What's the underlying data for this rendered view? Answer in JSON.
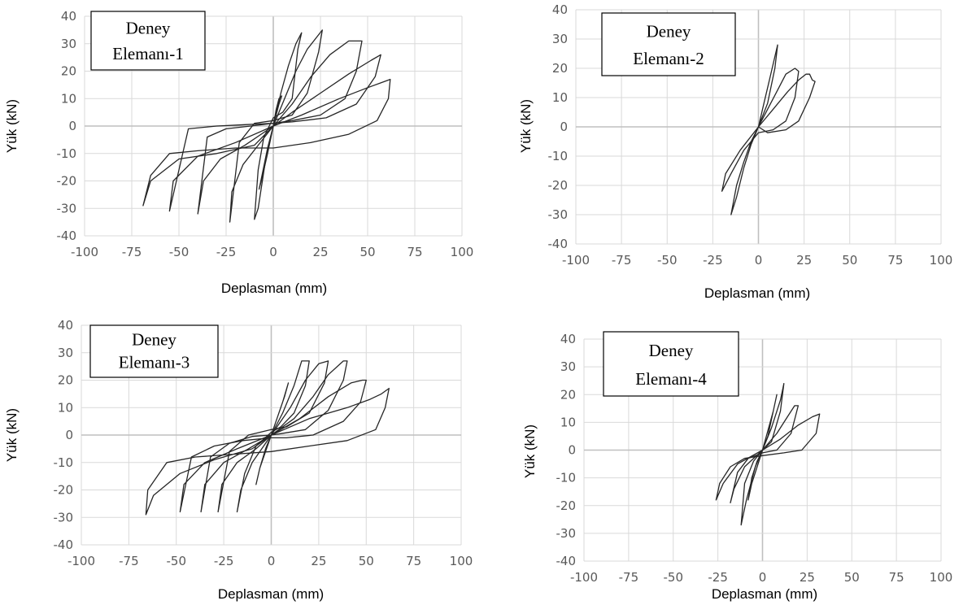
{
  "chart_data": [
    {
      "type": "line",
      "box_label": [
        "Deney",
        "Elemanı-1"
      ],
      "xlabel": "Deplasman (mm)",
      "ylabel": "Yük (kN)",
      "xlim": [
        -100,
        100
      ],
      "ylim": [
        -40,
        40
      ],
      "xticks": [
        "-100",
        "-75",
        "-50",
        "-25",
        "0",
        "25",
        "50",
        "75",
        "100"
      ],
      "yticks": [
        "40",
        "30",
        "20",
        "10",
        "0",
        "-10",
        "-20",
        "-30",
        "-40"
      ],
      "grid": true,
      "series": [
        {
          "x": [
            0,
            1.5,
            3,
            4.5,
            3,
            0,
            -3,
            -6,
            -7.5,
            -6,
            -3,
            0
          ],
          "y": [
            0,
            6,
            10,
            11,
            8,
            0,
            -10,
            -19,
            -23,
            -18,
            -8,
            0
          ]
        },
        {
          "x": [
            0,
            4,
            8,
            12,
            15,
            13,
            10,
            5,
            0,
            -5,
            -8,
            -10,
            -8,
            -4,
            0
          ],
          "y": [
            0,
            12,
            22,
            30,
            34,
            28,
            10,
            5,
            3,
            -4,
            -16,
            -34,
            -30,
            -12,
            0
          ]
        },
        {
          "x": [
            0,
            6,
            12,
            18,
            26,
            24,
            18,
            10,
            0,
            -10,
            -18,
            -23,
            -22,
            -16,
            -8,
            0
          ],
          "y": [
            0,
            10,
            20,
            28,
            35,
            27,
            12,
            4,
            2,
            1,
            -6,
            -35,
            -24,
            -14,
            -7,
            0
          ]
        },
        {
          "x": [
            0,
            10,
            20,
            30,
            40,
            47,
            44,
            38,
            25,
            10,
            0,
            -12,
            -25,
            -35,
            -40,
            -37,
            -28,
            -15,
            0
          ],
          "y": [
            0,
            8,
            18,
            26,
            31,
            31,
            20,
            10,
            4,
            2,
            1,
            0,
            -1,
            -4,
            -32,
            -20,
            -12,
            -7,
            0
          ]
        },
        {
          "x": [
            0,
            10,
            25,
            40,
            52,
            57,
            54,
            44,
            28,
            10,
            0,
            -15,
            -30,
            -45,
            -55,
            -53,
            -40,
            -20,
            0
          ],
          "y": [
            0,
            5,
            12,
            19,
            24,
            26,
            18,
            8,
            3,
            1.5,
            1,
            0.5,
            0,
            -1,
            -31,
            -20,
            -11,
            -6,
            0
          ]
        },
        {
          "x": [
            0,
            15,
            35,
            50,
            58,
            62,
            61,
            55,
            40,
            20,
            0,
            -20,
            -40,
            -55,
            -65,
            -69,
            -65,
            -50,
            -30,
            -10,
            0
          ],
          "y": [
            0,
            4,
            10,
            14,
            16,
            17,
            10,
            2,
            -3,
            -6,
            -8,
            -8,
            -9,
            -10,
            -18,
            -29,
            -20,
            -12,
            -10,
            -7,
            0
          ]
        }
      ]
    },
    {
      "type": "line",
      "box_label": [
        "Deney",
        "Elemanı-2"
      ],
      "xlabel": "Deplasman (mm)",
      "ylabel": "Yük (kN)",
      "xlim": [
        -100,
        100
      ],
      "ylim": [
        -40,
        40
      ],
      "xticks": [
        "-100",
        "-75",
        "-50",
        "-25",
        "0",
        "25",
        "50",
        "75",
        "100"
      ],
      "yticks": [
        "40",
        "30",
        "20",
        "10",
        "0",
        "-10",
        "-20",
        "-30",
        "-40"
      ],
      "grid": true,
      "series": [
        {
          "x": [
            0,
            3,
            6,
            9,
            10.5,
            9,
            5,
            0,
            -4,
            -8,
            -12,
            -15,
            -12,
            -8,
            -4,
            0
          ],
          "y": [
            0,
            8,
            16,
            24,
            28,
            20,
            8,
            0,
            -6,
            -14,
            -24,
            -30,
            -20,
            -12,
            -5,
            0
          ]
        },
        {
          "x": [
            0,
            5,
            10,
            15,
            20,
            22,
            20,
            15,
            8,
            0,
            -8,
            -15,
            -20,
            -18,
            -10,
            0
          ],
          "y": [
            0,
            6,
            12,
            18,
            20,
            19,
            10,
            2,
            -1,
            -2,
            -8,
            -16,
            -22,
            -16,
            -8,
            0
          ]
        },
        {
          "x": [
            0,
            8,
            16,
            22,
            26,
            28,
            29.5,
            31,
            28,
            22,
            15,
            5,
            0
          ],
          "y": [
            0,
            6,
            12,
            16,
            18,
            18,
            16,
            15.5,
            10,
            2,
            -1,
            -2,
            0
          ]
        }
      ]
    },
    {
      "type": "line",
      "box_label": [
        "Deney",
        "Elemanı-3"
      ],
      "xlabel": "Deplasman (mm)",
      "ylabel": "Yük (kN)",
      "xlim": [
        -100,
        100
      ],
      "ylim": [
        -40,
        40
      ],
      "xticks": [
        "-100",
        "-75",
        "-50",
        "-25",
        "0",
        "25",
        "50",
        "75",
        "100"
      ],
      "yticks": [
        "40",
        "30",
        "20",
        "10",
        "0",
        "-10",
        "-20",
        "-30",
        "-40"
      ],
      "grid": true,
      "series": [
        {
          "x": [
            0,
            3,
            6,
            9,
            7,
            3,
            0,
            -3,
            -6,
            -8,
            -6,
            -3,
            0
          ],
          "y": [
            0,
            6,
            12,
            19,
            14,
            6,
            0,
            -6,
            -12,
            -18,
            -12,
            -5,
            0
          ]
        },
        {
          "x": [
            0,
            6,
            12,
            16,
            20,
            18,
            12,
            5,
            0,
            -8,
            -14,
            -18,
            -16,
            -10,
            -4,
            0
          ],
          "y": [
            0,
            8,
            18,
            27,
            27,
            18,
            8,
            3,
            1,
            -4,
            -14,
            -28,
            -20,
            -10,
            -4,
            0
          ]
        },
        {
          "x": [
            0,
            10,
            18,
            25,
            30,
            28,
            20,
            8,
            0,
            -12,
            -22,
            -28,
            -26,
            -18,
            -8,
            0
          ],
          "y": [
            0,
            10,
            20,
            26,
            27,
            19,
            8,
            3,
            2,
            0,
            -6,
            -28,
            -18,
            -10,
            -5,
            0
          ]
        },
        {
          "x": [
            0,
            12,
            22,
            30,
            38,
            40,
            38,
            30,
            18,
            5,
            0,
            -10,
            -22,
            -32,
            -37,
            -35,
            -25,
            -12,
            0
          ],
          "y": [
            0,
            6,
            14,
            22,
            27,
            27,
            20,
            9,
            2,
            0.5,
            0,
            -0.5,
            -3,
            -8,
            -28,
            -18,
            -10,
            -5,
            0
          ]
        },
        {
          "x": [
            0,
            15,
            30,
            42,
            48,
            50,
            47,
            38,
            22,
            8,
            0,
            -15,
            -30,
            -42,
            -48,
            -46,
            -35,
            -18,
            0
          ],
          "y": [
            0,
            6,
            14,
            19,
            20,
            20,
            12,
            5,
            0,
            -1,
            -1,
            -2,
            -4,
            -8,
            -28,
            -18,
            -10,
            -5,
            0
          ]
        },
        {
          "x": [
            0,
            20,
            40,
            52,
            58,
            62,
            60,
            55,
            40,
            20,
            0,
            -20,
            -40,
            -55,
            -65,
            -66,
            -62,
            -48,
            -30,
            -10,
            0
          ],
          "y": [
            0,
            6,
            10,
            13,
            15,
            17,
            10,
            2,
            -2,
            -4,
            -6,
            -7,
            -8,
            -10,
            -20,
            -29,
            -22,
            -14,
            -9,
            -5,
            0
          ]
        }
      ]
    },
    {
      "type": "line",
      "box_label": [
        "Deney",
        "Elemanı-4"
      ],
      "xlabel": "Deplasman (mm)",
      "ylabel": "Yük (kN)",
      "xlim": [
        -100,
        100
      ],
      "ylim": [
        -40,
        40
      ],
      "xticks": [
        "-100",
        "-75",
        "-50",
        "-25",
        "0",
        "25",
        "50",
        "75",
        "100"
      ],
      "yticks": [
        "40",
        "30",
        "20",
        "10",
        "0",
        "-10",
        "-20",
        "-30",
        "-40"
      ],
      "grid": true,
      "series": [
        {
          "x": [
            0,
            3,
            6,
            8,
            6,
            3,
            0,
            -3,
            -6,
            -8,
            -6,
            -3,
            0
          ],
          "y": [
            0,
            7,
            14,
            20,
            14,
            5,
            0,
            -6,
            -12,
            -18,
            -10,
            -4,
            0
          ]
        },
        {
          "x": [
            0,
            5,
            10,
            12,
            10,
            5,
            0,
            -5,
            -10,
            -12,
            -9,
            -4,
            0
          ],
          "y": [
            0,
            8,
            18,
            24,
            14,
            3,
            0,
            -4,
            -12,
            -27,
            -18,
            -6,
            0
          ]
        },
        {
          "x": [
            0,
            8,
            14,
            18,
            20,
            16,
            8,
            0,
            -8,
            -14,
            -18,
            -16,
            -10,
            0
          ],
          "y": [
            0,
            6,
            12,
            16,
            16,
            6,
            0,
            -1,
            -3,
            -8,
            -19,
            -14,
            -6,
            0
          ]
        },
        {
          "x": [
            0,
            10,
            20,
            28,
            32,
            30,
            22,
            12,
            0,
            -10,
            -18,
            -24,
            -26,
            -22,
            -14,
            0
          ],
          "y": [
            0,
            4,
            9,
            12,
            13,
            6,
            0,
            -1,
            -2,
            -3,
            -6,
            -12,
            -18,
            -12,
            -5,
            0
          ]
        }
      ]
    }
  ]
}
